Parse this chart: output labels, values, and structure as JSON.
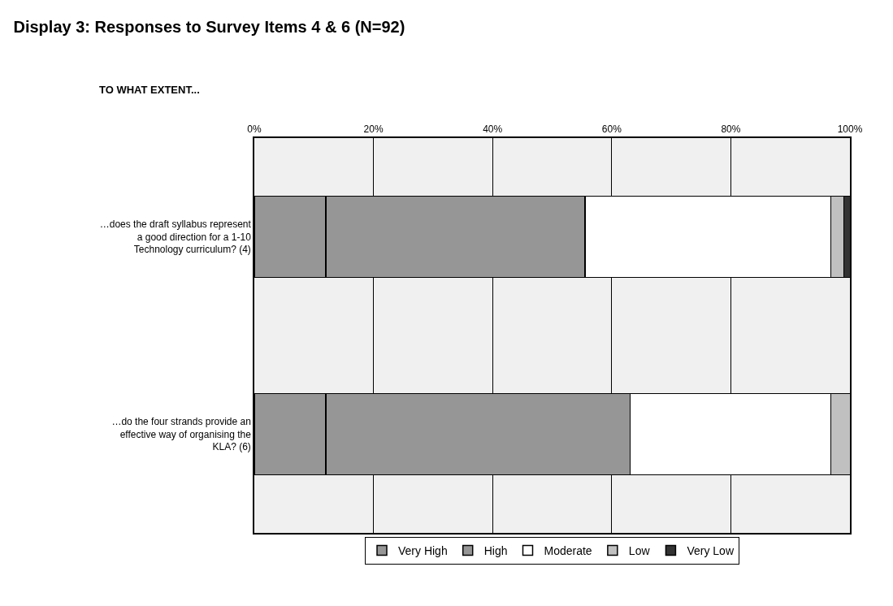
{
  "chart_data": {
    "type": "bar",
    "orientation": "horizontal",
    "stacked": true,
    "title": "Display 3: Responses to Survey Items 4 & 6 (N=92)",
    "subtitle": "TO WHAT EXTENT...",
    "categories": [
      "…does the draft syllabus represent a good direction for a 1-10 Technology curriculum? (4)",
      "…do the four strands provide an effective way of organising the KLA? (6)"
    ],
    "series": [
      {
        "name": "Very High",
        "color": "#969696",
        "values": [
          12.0,
          12.0
        ]
      },
      {
        "name": "High",
        "color": "#969696",
        "values": [
          43.5,
          51.1
        ]
      },
      {
        "name": "Moderate",
        "color": "#ffffff",
        "values": [
          41.3,
          33.7
        ]
      },
      {
        "name": "Low",
        "color": "#c0c0c0",
        "values": [
          2.2,
          3.3
        ]
      },
      {
        "name": "Very Low",
        "color": "#333333",
        "values": [
          1.1,
          0
        ]
      }
    ],
    "xlim": [
      0,
      100
    ],
    "xticks": [
      {
        "value": 0,
        "label": "0%"
      },
      {
        "value": 20,
        "label": "20%"
      },
      {
        "value": 40,
        "label": "40%"
      },
      {
        "value": 60,
        "label": "60%"
      },
      {
        "value": 80,
        "label": "80%"
      },
      {
        "value": 100,
        "label": "100%"
      }
    ],
    "grid": "x",
    "legend": "bottom"
  }
}
